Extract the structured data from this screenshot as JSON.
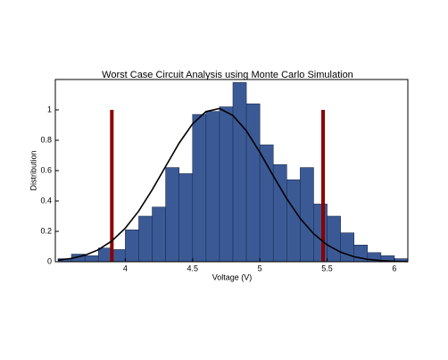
{
  "chart_data": {
    "type": "histogram",
    "title": "Worst Case Circuit Analysis using Monte Carlo Simulation",
    "x_label": "Voltage (V)",
    "y_label": "Distribution",
    "bins": [
      3.5,
      3.6,
      3.7,
      3.8,
      3.9,
      4.0,
      4.1,
      4.2,
      4.3,
      4.4,
      4.5,
      4.6,
      4.7,
      4.8,
      4.9,
      5.0,
      5.1,
      5.2,
      5.3,
      5.4,
      5.5,
      5.6,
      5.7,
      5.8,
      5.9,
      6.0,
      6.1
    ],
    "values": [
      0.02,
      0.05,
      0.04,
      0.09,
      0.08,
      0.21,
      0.3,
      0.36,
      0.62,
      0.58,
      0.97,
      0.99,
      1.02,
      1.18,
      1.04,
      0.77,
      0.64,
      0.54,
      0.62,
      0.38,
      0.3,
      0.19,
      0.11,
      0.06,
      0.04,
      0.02
    ],
    "color": "#3b5a95",
    "curve": {
      "color": "#000000",
      "x": [
        3.5,
        3.6,
        3.7,
        3.8,
        3.9,
        4.0,
        4.1,
        4.2,
        4.3,
        4.4,
        4.5,
        4.6,
        4.7,
        4.8,
        4.9,
        5.0,
        5.1,
        5.2,
        5.3,
        5.4,
        5.5,
        5.6,
        5.7,
        5.8,
        5.9,
        6.0,
        6.1
      ],
      "values": [
        0.01,
        0.022,
        0.043,
        0.079,
        0.137,
        0.221,
        0.334,
        0.474,
        0.628,
        0.781,
        0.908,
        0.989,
        1.009,
        0.963,
        0.862,
        0.721,
        0.565,
        0.415,
        0.285,
        0.184,
        0.111,
        0.063,
        0.033,
        0.016,
        0.008,
        0.003,
        0.001
      ]
    },
    "limits": {
      "color": "#8b0000",
      "values": [
        3.9,
        5.47
      ],
      "height": 1
    },
    "xlim": [
      3.48,
      6.1
    ],
    "ylim": [
      0,
      1.2
    ],
    "xticks": [
      4,
      4.5,
      5,
      5.5,
      6
    ],
    "yticks": [
      0,
      0.2,
      0.4,
      0.6,
      0.8,
      1
    ]
  }
}
